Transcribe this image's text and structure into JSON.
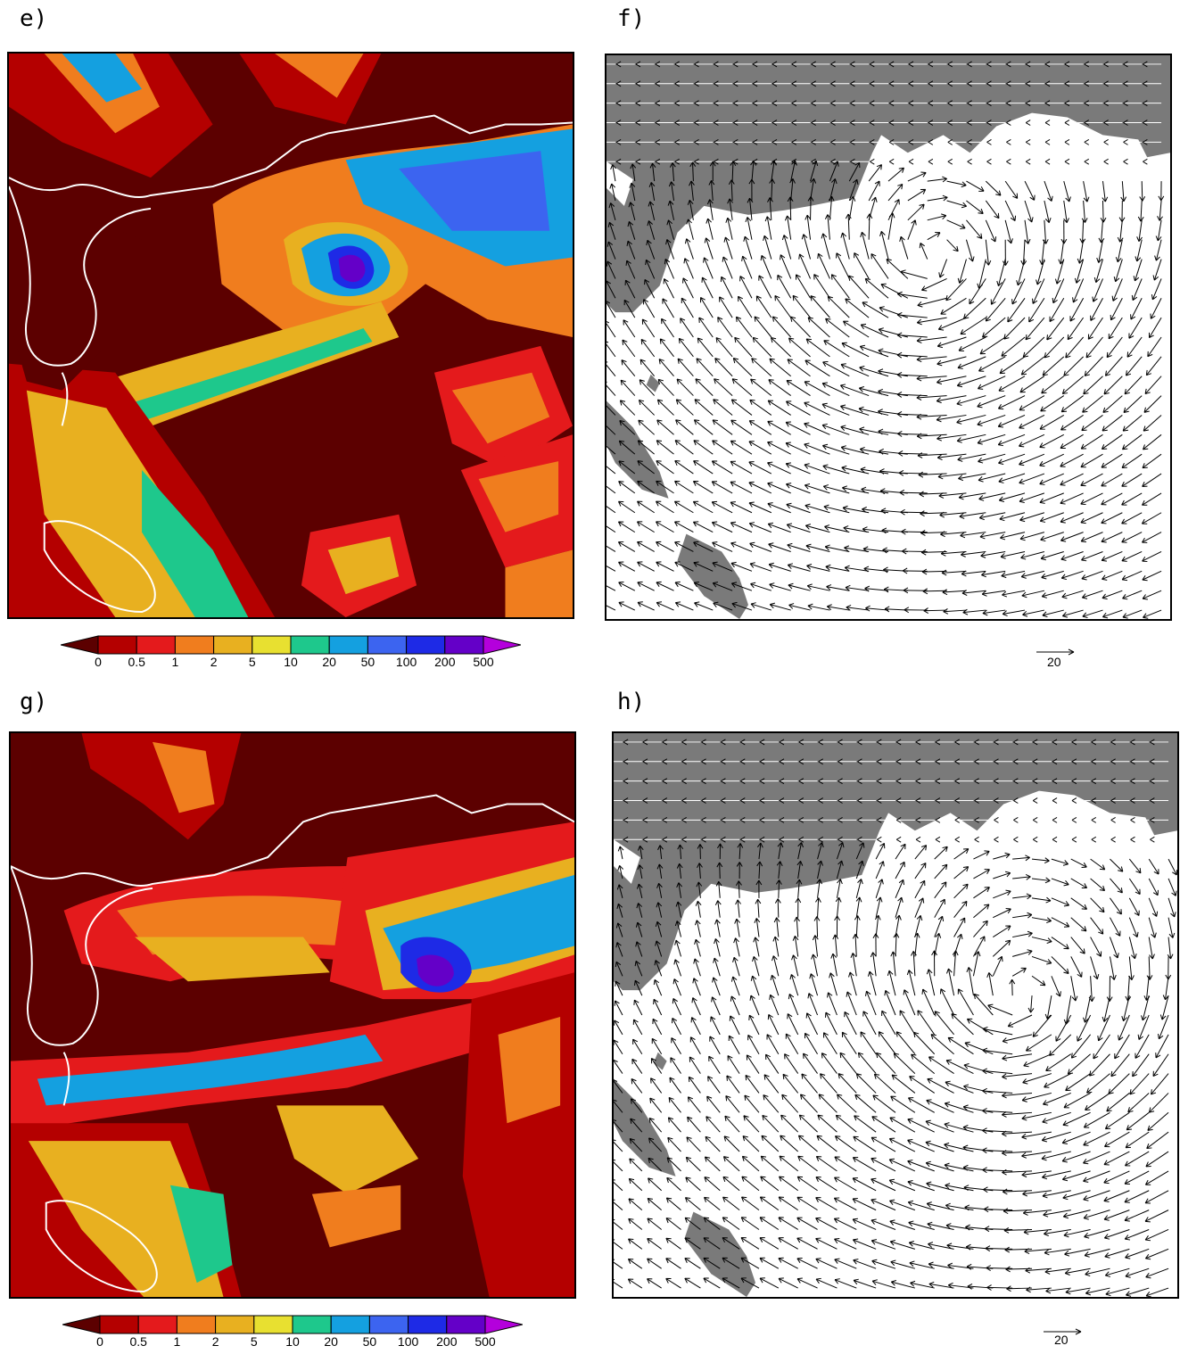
{
  "panels": [
    {
      "id": "e",
      "label": "e)",
      "kind": "precip"
    },
    {
      "id": "f",
      "label": "f)",
      "kind": "wind"
    },
    {
      "id": "g",
      "label": "g)",
      "kind": "precip"
    },
    {
      "id": "h",
      "label": "h)",
      "kind": "wind"
    }
  ],
  "colorbar": {
    "tick_labels": [
      "0",
      "0.5",
      "1",
      "2",
      "5",
      "10",
      "20",
      "50",
      "100",
      "200",
      "500"
    ],
    "colors": [
      "#5c0000",
      "#b40000",
      "#e41a1c",
      "#f07d1e",
      "#e8b020",
      "#e8e030",
      "#1ec88c",
      "#14a0e0",
      "#3c64f0",
      "#1e2ae6",
      "#6400c8",
      "#b400dc"
    ]
  },
  "reference_vector": {
    "label": "20"
  },
  "colors": {
    "land": "#7a7a7a",
    "sea": "#ffffff",
    "coast_line": "#ffffff"
  }
}
